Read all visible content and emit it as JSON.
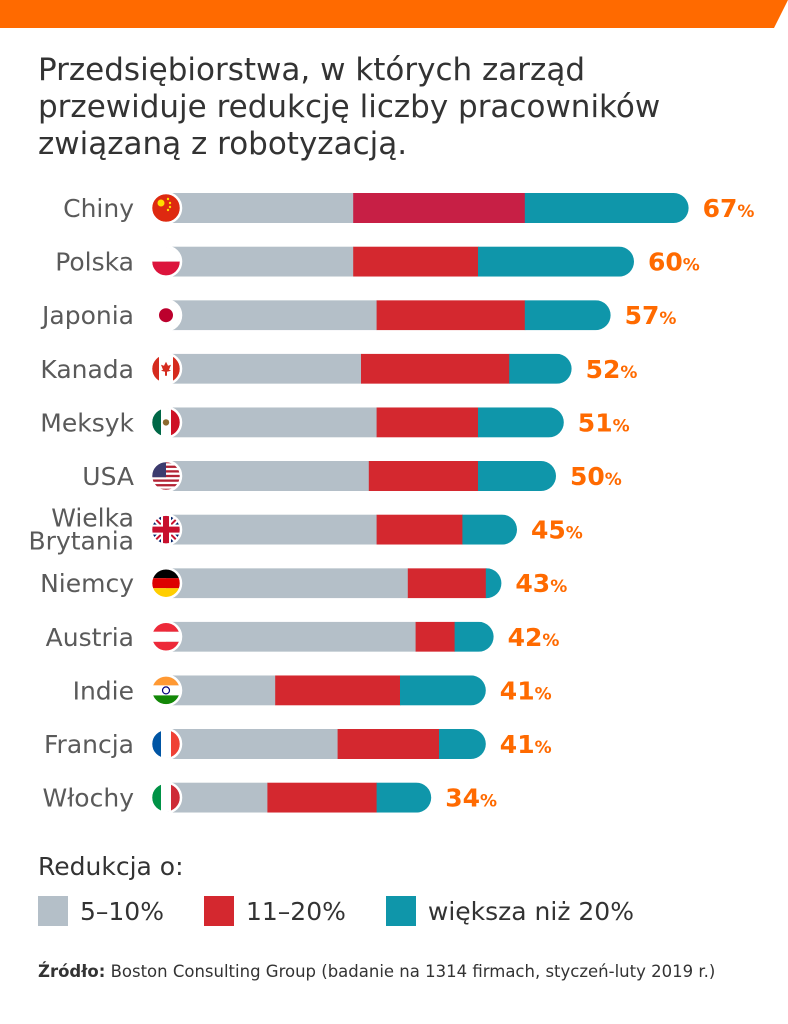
{
  "title": "Przedsiębiorstwa, w których zarząd przewiduje redukcję liczby pracowników związaną z robotyzacją.",
  "colors": {
    "top_bar": "#ff6a00",
    "seg1": "#b4bfc8",
    "seg2": "#d4282f",
    "seg3": "#0f96aa",
    "seg2_china": "#c71f45",
    "total_label": "#ff6a00",
    "country_text": "#5a5a5a"
  },
  "chart_data": {
    "type": "bar",
    "orientation": "horizontal",
    "stacked": true,
    "title": "Przedsiębiorstwa, w których zarząd przewiduje redukcję liczby pracowników związaną z robotyzacją.",
    "categories": [
      "Chiny",
      "Polska",
      "Japonia",
      "Kanada",
      "Meksyk",
      "USA",
      "Wielka Brytania",
      "Niemcy",
      "Austria",
      "Indie",
      "Francja",
      "Włochy"
    ],
    "category_lines": [
      [
        "Chiny"
      ],
      [
        "Polska"
      ],
      [
        "Japonia"
      ],
      [
        "Kanada"
      ],
      [
        "Meksyk"
      ],
      [
        "USA"
      ],
      [
        "Wielka",
        "Brytania"
      ],
      [
        "Niemcy"
      ],
      [
        "Austria"
      ],
      [
        "Indie"
      ],
      [
        "Francja"
      ],
      [
        "Włochy"
      ]
    ],
    "flag_icons": [
      "china-flag-icon",
      "poland-flag-icon",
      "japan-flag-icon",
      "canada-flag-icon",
      "mexico-flag-icon",
      "usa-flag-icon",
      "uk-flag-icon",
      "germany-flag-icon",
      "austria-flag-icon",
      "india-flag-icon",
      "france-flag-icon",
      "italy-flag-icon"
    ],
    "series": [
      {
        "name": "5–10%",
        "values": [
          24,
          24,
          27,
          25,
          27,
          26,
          27,
          31,
          32,
          14,
          22,
          13
        ]
      },
      {
        "name": "11–20%",
        "values": [
          22,
          16,
          19,
          19,
          13,
          14,
          11,
          10,
          5,
          16,
          13,
          14
        ]
      },
      {
        "name": "większa niż 20%",
        "values": [
          21,
          20,
          11,
          8,
          11,
          10,
          7,
          2,
          5,
          11,
          6,
          7
        ]
      }
    ],
    "totals": [
      67,
      60,
      57,
      52,
      51,
      50,
      45,
      43,
      42,
      41,
      41,
      34
    ],
    "total_labels": [
      "67",
      "60",
      "57",
      "52",
      "51",
      "50",
      "45",
      "43",
      "42",
      "41",
      "41",
      "34"
    ],
    "total_unit": "%",
    "legend_title": "Redukcja o:",
    "legend_position": "bottom-left",
    "grid": false
  },
  "source": {
    "label": "Źródło:",
    "text": "Boston Consulting Group (badanie na 1314 firmach, styczeń-luty 2019 r.)"
  }
}
